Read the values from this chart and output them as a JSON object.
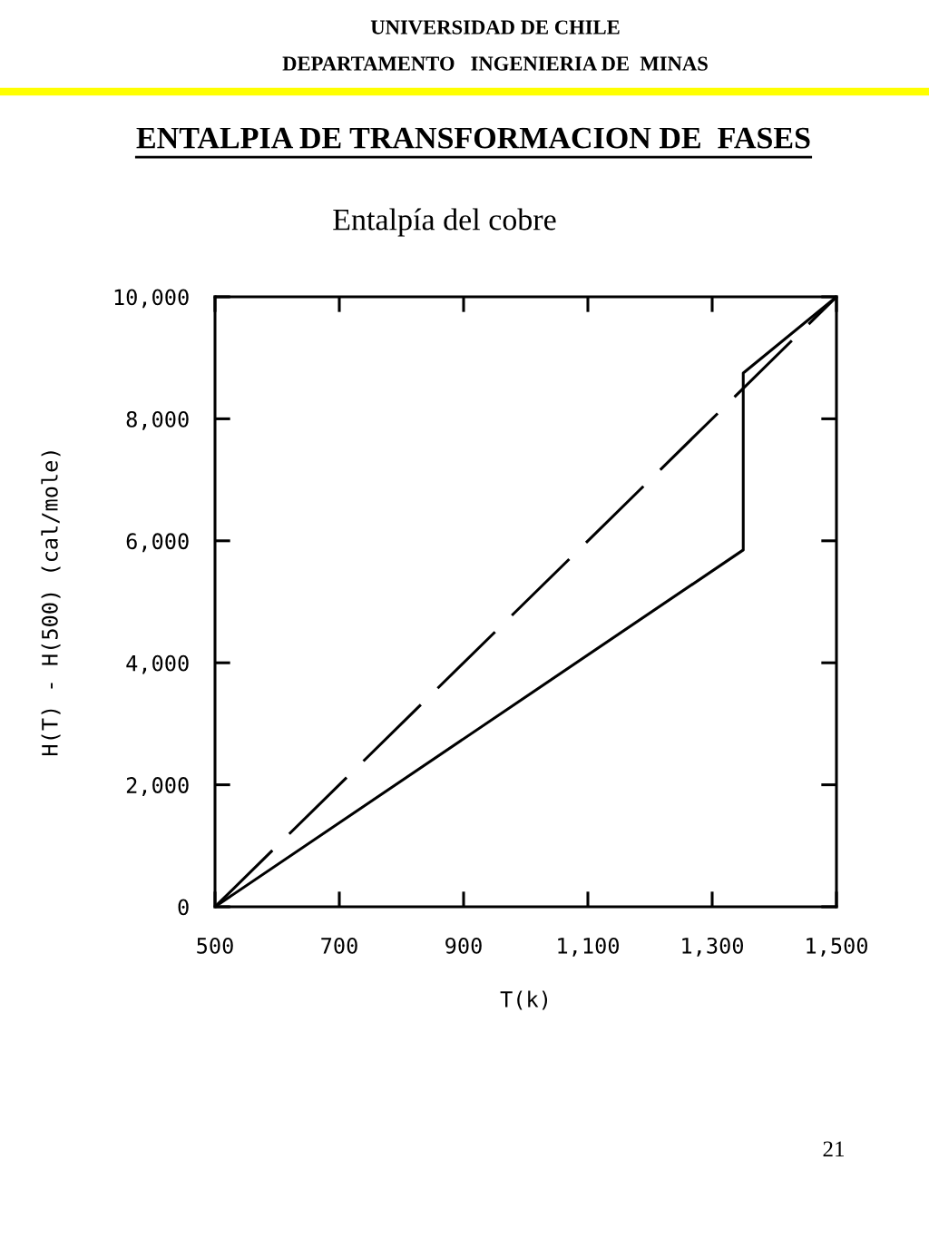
{
  "chart_data": {
    "type": "line",
    "title": "ENTALPIA DE TRANSFORMACION DE  FASES",
    "subtitle": "Entalpía del cobre",
    "xlabel": "T(k)",
    "ylabel": "H(T) - H(500) (cal/mole)",
    "annotations": [
      "UNIVERSIDAD DE CHILE",
      "DEPARTAMENTO   INGENIERIA DE  MINAS",
      "21"
    ],
    "series": [
      {
        "x": [
          500,
          1350,
          1350,
          1500
        ],
        "values": [
          0,
          5850,
          8750,
          10000
        ],
        "color": "#000000",
        "line_style": "solid"
      },
      {
        "x": [
          500,
          1500
        ],
        "values": [
          0,
          10000
        ],
        "color": "#000000",
        "line_style": "dashed"
      }
    ],
    "xlim": [
      500,
      1500
    ],
    "xticks": [
      500,
      700,
      900,
      {
        "value": 1100,
        "label": "1,100"
      },
      {
        "value": 1300,
        "label": "1,300"
      },
      {
        "value": 1500,
        "label": "1,500"
      }
    ],
    "ylim": [
      0,
      10000
    ],
    "yticks": [
      0,
      {
        "value": 2000,
        "label": "2,000"
      },
      {
        "value": 4000,
        "label": "4,000"
      },
      {
        "value": 6000,
        "label": "6,000"
      },
      {
        "value": 8000,
        "label": "8,000"
      },
      {
        "value": 10000,
        "label": "10,000"
      }
    ],
    "grid": false,
    "marker": "none"
  }
}
